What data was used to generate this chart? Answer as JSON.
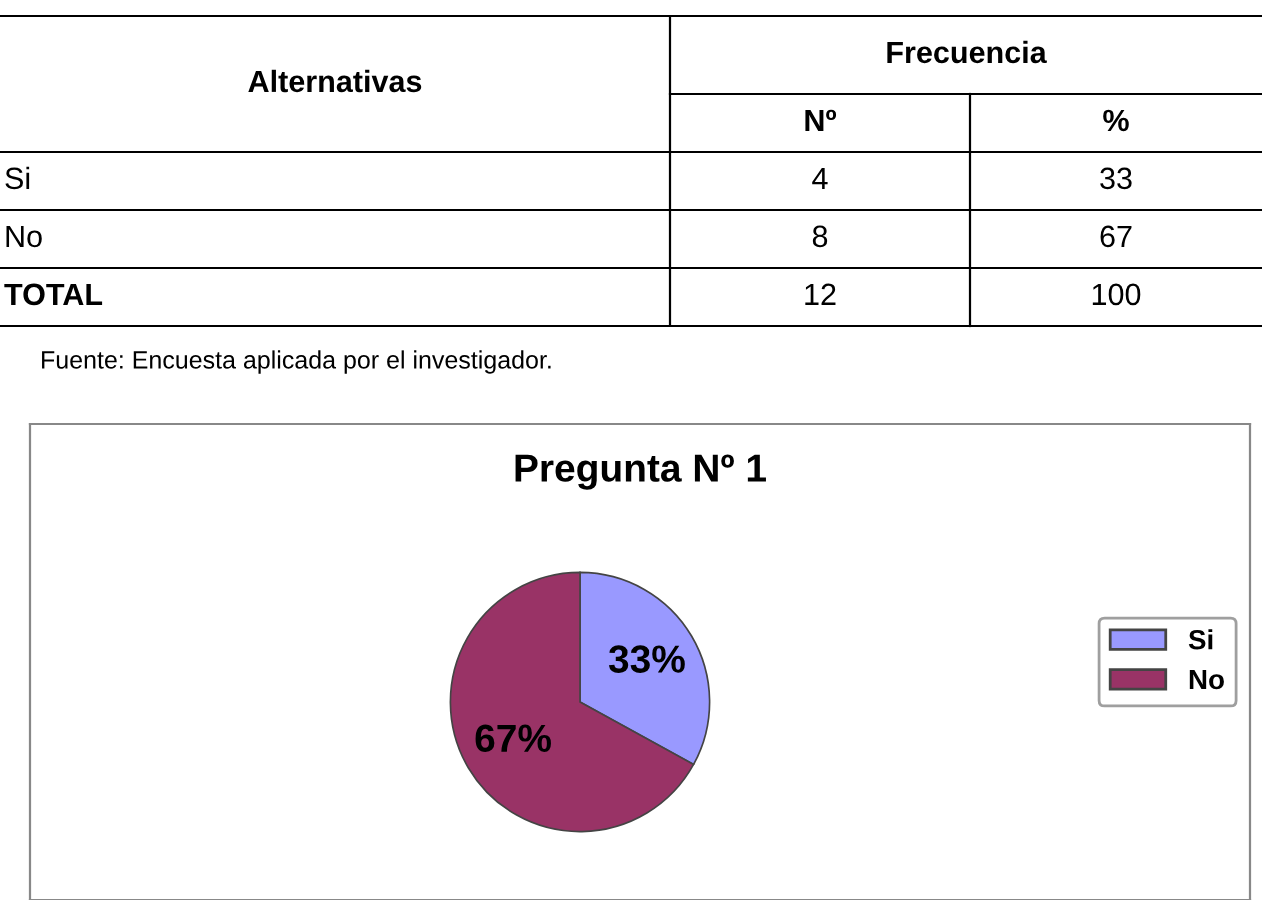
{
  "chart_data": [
    {
      "type": "other",
      "xlabel": "Alternativas",
      "legend_title": "Frecuencia",
      "categories": [
        "Si",
        "No",
        "TOTAL"
      ],
      "series": [
        {
          "name": "Nº",
          "values": [
            4,
            8,
            12
          ]
        },
        {
          "name": "%",
          "values": [
            33,
            67,
            100
          ]
        }
      ],
      "data_labels": true,
      "annotations": [
        "Fuente: Encuesta aplicada por el investigador."
      ]
    },
    {
      "type": "pie",
      "title": "Pregunta Nº 1",
      "categories": [
        "Si",
        "No"
      ],
      "values": [
        33,
        67
      ],
      "colors": [
        "#9999ff",
        "#993366"
      ],
      "value_labels": [
        "33%",
        "67%"
      ],
      "legend": "right"
    }
  ]
}
